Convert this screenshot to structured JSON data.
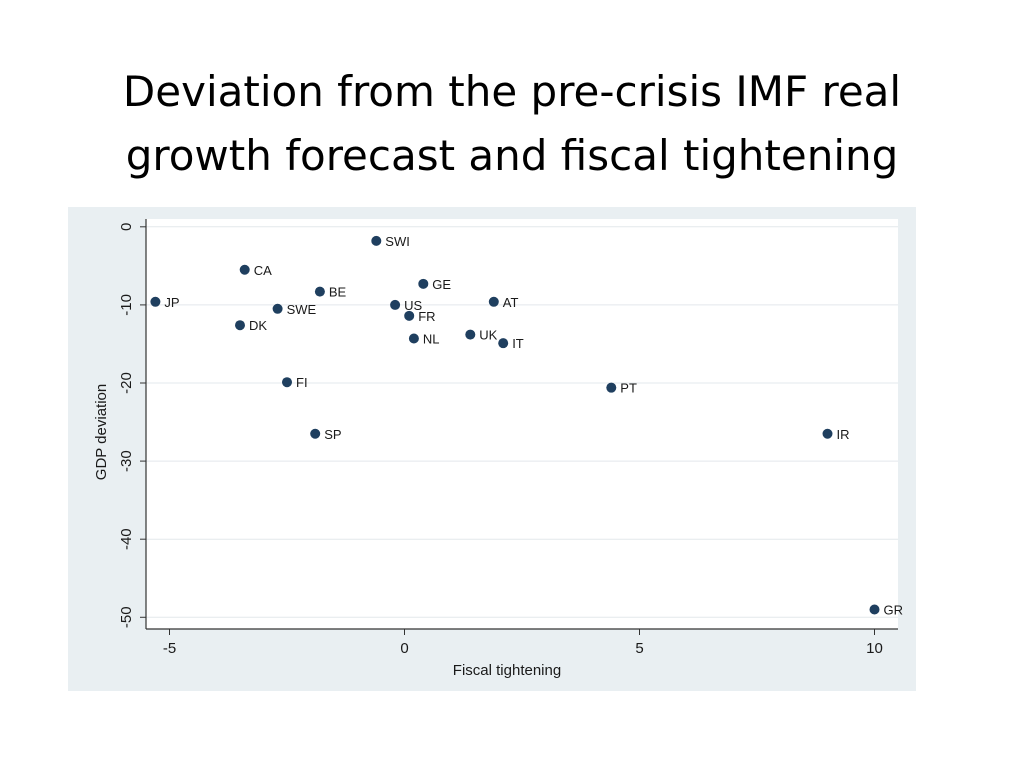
{
  "slide": {
    "title_line1": "Deviation from the pre-crisis IMF real",
    "title_line2": "growth forecast and fiscal tightening"
  },
  "colors": {
    "panel_bg": "#e9eff2",
    "plot_bg": "#ffffff",
    "grid": "#e3e8ec",
    "axis": "#333333",
    "marker": "#1f3f5f"
  },
  "chart_data": {
    "type": "scatter",
    "title": "",
    "xlabel": "Fiscal tightening",
    "ylabel": "GDP deviation",
    "xlim": [
      -5.5,
      10.5
    ],
    "ylim": [
      -51.5,
      1
    ],
    "xticks": [
      -5,
      0,
      5,
      10
    ],
    "yticks": [
      0,
      -10,
      -20,
      -30,
      -40,
      -50
    ],
    "grid": true,
    "points": [
      {
        "label": "SWI",
        "x": -0.6,
        "y": -1.8
      },
      {
        "label": "CA",
        "x": -3.4,
        "y": -5.5
      },
      {
        "label": "GE",
        "x": 0.4,
        "y": -7.3
      },
      {
        "label": "BE",
        "x": -1.8,
        "y": -8.3
      },
      {
        "label": "JP",
        "x": -5.3,
        "y": -9.6
      },
      {
        "label": "AT",
        "x": 1.9,
        "y": -9.6
      },
      {
        "label": "US",
        "x": -0.2,
        "y": -10.0
      },
      {
        "label": "SWE",
        "x": -2.7,
        "y": -10.5
      },
      {
        "label": "FR",
        "x": 0.1,
        "y": -11.4
      },
      {
        "label": "DK",
        "x": -3.5,
        "y": -12.6
      },
      {
        "label": "UK",
        "x": 1.4,
        "y": -13.8
      },
      {
        "label": "NL",
        "x": 0.2,
        "y": -14.3
      },
      {
        "label": "IT",
        "x": 2.1,
        "y": -14.9
      },
      {
        "label": "FI",
        "x": -2.5,
        "y": -19.9
      },
      {
        "label": "PT",
        "x": 4.4,
        "y": -20.6
      },
      {
        "label": "SP",
        "x": -1.9,
        "y": -26.5
      },
      {
        "label": "IR",
        "x": 9.0,
        "y": -26.5
      },
      {
        "label": "GR",
        "x": 10.0,
        "y": -49.0
      }
    ]
  }
}
